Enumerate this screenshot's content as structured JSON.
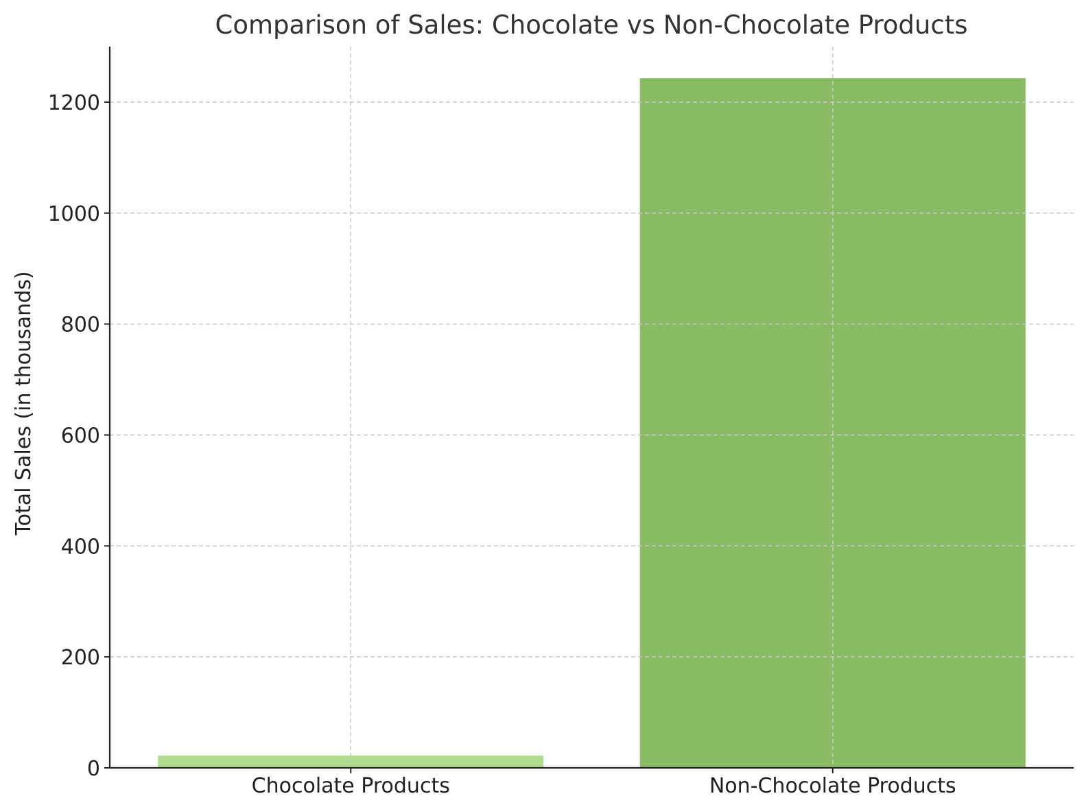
{
  "chart_data": {
    "type": "bar",
    "title": "Comparison of Sales: Chocolate vs Non-Chocolate Products",
    "xlabel": "",
    "ylabel": "Total Sales (in thousands)",
    "categories": [
      "Chocolate Products",
      "Non-Chocolate Products"
    ],
    "values": [
      22,
      1243
    ],
    "colors": [
      "#addc8c",
      "#88bb63"
    ],
    "ylim": [
      0,
      1300
    ],
    "yticks": [
      0,
      200,
      400,
      600,
      800,
      1000,
      1200
    ],
    "ytick_labels": [
      "0",
      "200",
      "400",
      "600",
      "800",
      "1000",
      "1200"
    ],
    "grid": true,
    "grid_color": "#c8c8c8",
    "axis_color": "#222222",
    "title_color": "#333333"
  }
}
